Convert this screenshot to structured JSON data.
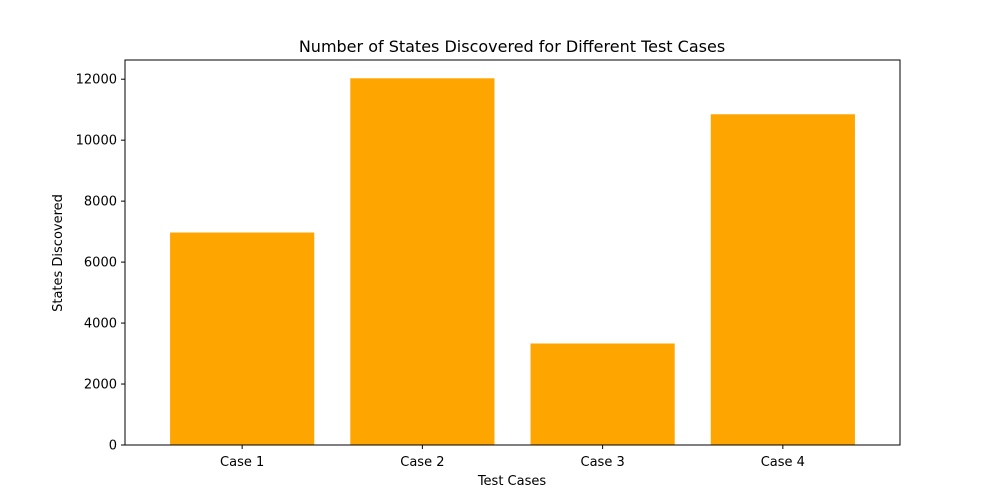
{
  "colors": {
    "bar": "#ffa500",
    "axis": "#000000",
    "background": "#ffffff"
  },
  "chart_data": {
    "type": "bar",
    "title": "Number of States Discovered for Different Test Cases",
    "xlabel": "Test Cases",
    "ylabel": "States Discovered",
    "categories": [
      "Case 1",
      "Case 2",
      "Case 3",
      "Case 4"
    ],
    "values": [
      6970,
      12030,
      3330,
      10850
    ],
    "ylim": [
      0,
      12630
    ],
    "yticks": [
      0,
      2000,
      4000,
      6000,
      8000,
      10000,
      12000
    ],
    "grid": false,
    "legend": "none"
  }
}
